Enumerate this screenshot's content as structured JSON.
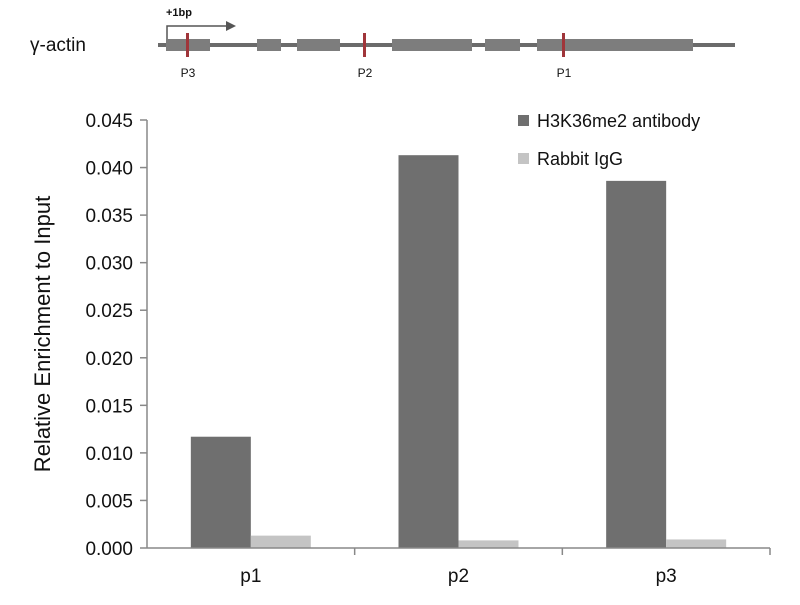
{
  "gene_map": {
    "gene_label": "γ-actin",
    "tss_label": "+1bp",
    "primer_labels": [
      "P3",
      "P2",
      "P1"
    ],
    "colors": {
      "line": "#6b6b6b",
      "exon": "#7d7d7d",
      "primer": "#a0353a"
    }
  },
  "chart_data": {
    "type": "bar",
    "title": "",
    "xlabel": "",
    "ylabel": "Relative Enrichment to Input",
    "categories": [
      "p1",
      "p2",
      "p3"
    ],
    "series": [
      {
        "name": "H3K36me2 antibody",
        "color": "#6f6f6f",
        "values": [
          0.0117,
          0.0413,
          0.0386
        ]
      },
      {
        "name": "Rabbit IgG",
        "color": "#c4c4c4",
        "values": [
          0.0013,
          0.0008,
          0.0009
        ]
      }
    ],
    "ylim": [
      0,
      0.045
    ],
    "yticks": [
      "0.000",
      "0.005",
      "0.010",
      "0.015",
      "0.020",
      "0.025",
      "0.030",
      "0.035",
      "0.040",
      "0.045"
    ],
    "grid": false,
    "legend": "top-right"
  }
}
